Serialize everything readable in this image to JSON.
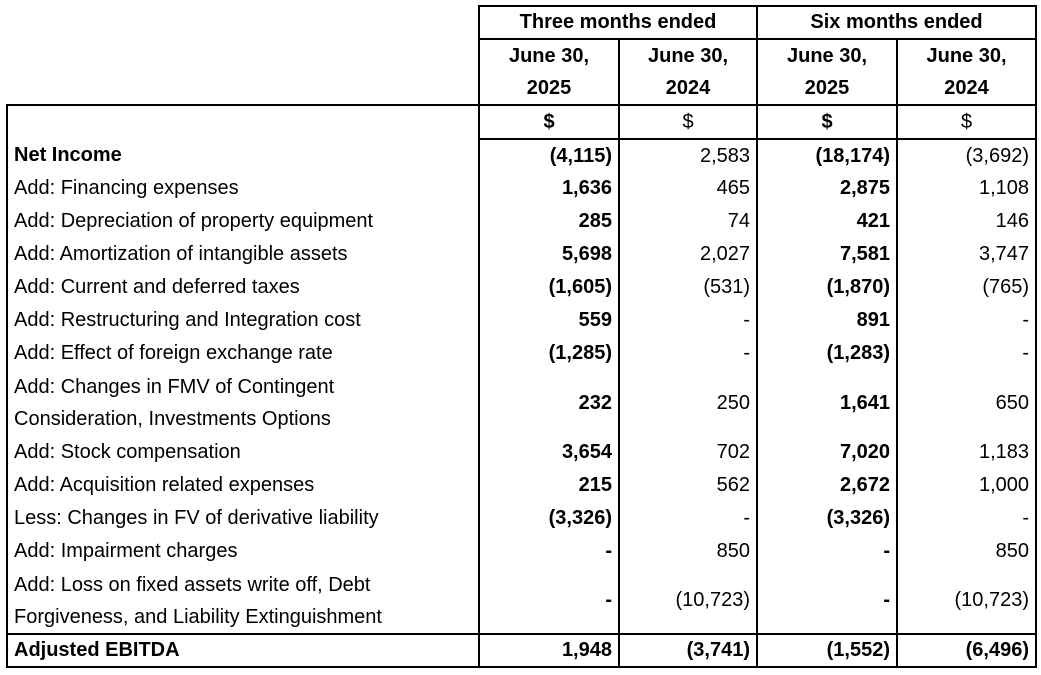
{
  "header": {
    "group_three": "Three months ended",
    "group_six": "Six months ended",
    "columns": [
      {
        "line1": "June 30,",
        "line2": "2025"
      },
      {
        "line1": "June 30,",
        "line2": "2024"
      },
      {
        "line1": "June 30,",
        "line2": "2025"
      },
      {
        "line1": "June 30,",
        "line2": "2024"
      }
    ],
    "currency": [
      "$",
      "$",
      "$",
      "$"
    ]
  },
  "rows": [
    {
      "label": "Net Income",
      "values": [
        "(4,115)",
        "2,583",
        "(18,174)",
        "(3,692)"
      ]
    },
    {
      "label": "Add: Financing expenses",
      "values": [
        "1,636",
        "465",
        "2,875",
        "1,108"
      ]
    },
    {
      "label": "Add: Depreciation of property equipment",
      "values": [
        "285",
        "74",
        "421",
        "146"
      ]
    },
    {
      "label": "Add: Amortization of intangible assets",
      "values": [
        "5,698",
        "2,027",
        "7,581",
        "3,747"
      ]
    },
    {
      "label": "Add: Current and deferred taxes",
      "values": [
        "(1,605)",
        "(531)",
        "(1,870)",
        "(765)"
      ]
    },
    {
      "label": "Add: Restructuring and Integration cost",
      "values": [
        "559",
        "-",
        "891",
        "-"
      ]
    },
    {
      "label": "Add: Effect of foreign exchange rate",
      "values": [
        "(1,285)",
        "-",
        "(1,283)",
        "-"
      ]
    },
    {
      "label_line1": "Add: Changes in FMV of Contingent",
      "label_line2": "Consideration, Investments Options",
      "values": [
        "232",
        "250",
        "1,641",
        "650"
      ]
    },
    {
      "label": "Add: Stock compensation",
      "values": [
        "3,654",
        "702",
        "7,020",
        "1,183"
      ]
    },
    {
      "label": "Add: Acquisition related expenses",
      "values": [
        "215",
        "562",
        "2,672",
        "1,000"
      ]
    },
    {
      "label": "Less: Changes in FV of derivative liability",
      "values": [
        "(3,326)",
        "-",
        "(3,326)",
        "-"
      ]
    },
    {
      "label": "Add: Impairment charges",
      "values": [
        "-",
        "850",
        "-",
        "850"
      ]
    },
    {
      "label_line1": "Add: Loss on fixed assets write off, Debt",
      "label_line2": "Forgiveness, and Liability Extinguishment",
      "values": [
        "-",
        "(10,723)",
        "-",
        "(10,723)"
      ]
    },
    {
      "label": "Adjusted EBITDA",
      "values": [
        "1,948",
        "(3,741)",
        "(1,552)",
        "(6,496)"
      ]
    }
  ]
}
